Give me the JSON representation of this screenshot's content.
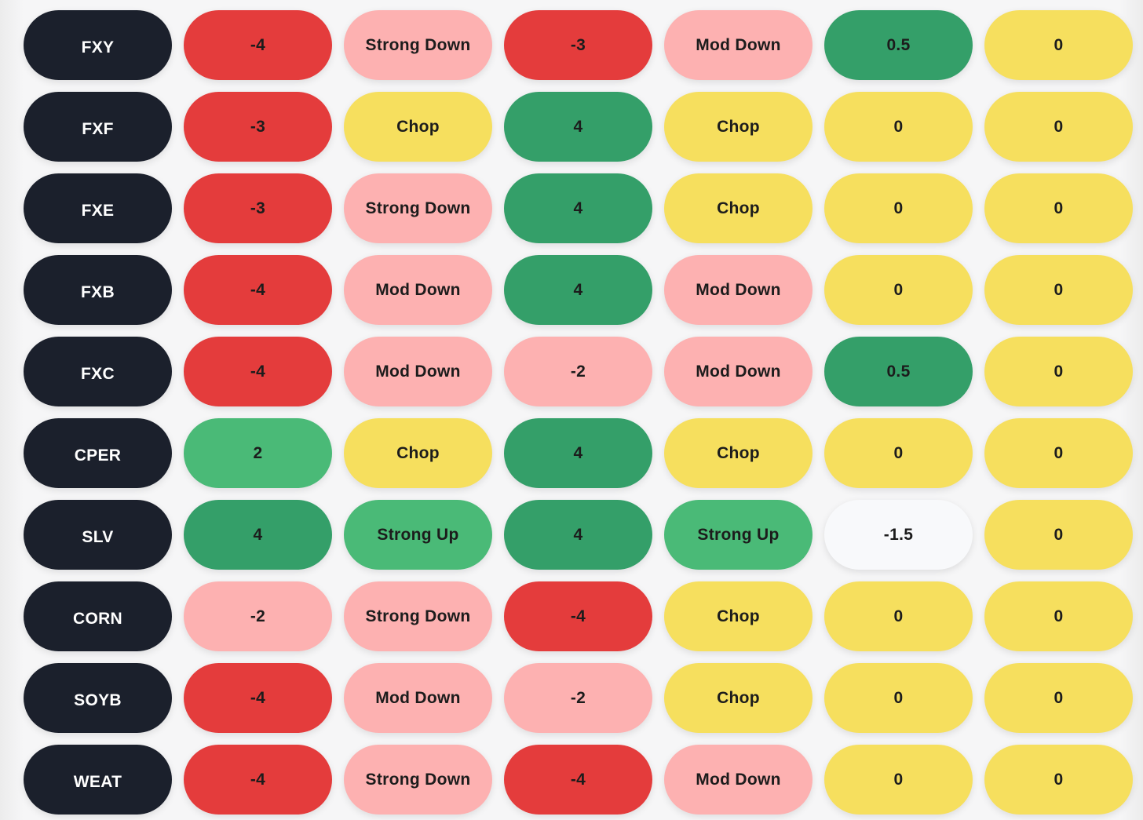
{
  "colors": {
    "ticker": "#1b202c",
    "strong_down": "#e43c3c",
    "mod_down": "#fdb1b1",
    "chop": "#f6df5e",
    "mod_up": "#4aba77",
    "strong_up_dark": "#349f69",
    "neutral": "#f8f9fb"
  },
  "rows": [
    {
      "ticker": "FXY",
      "cells": [
        {
          "text": "-4",
          "tone": "strong_down"
        },
        {
          "text": "Strong Down",
          "tone": "mod_down"
        },
        {
          "text": "-3",
          "tone": "strong_down"
        },
        {
          "text": "Mod Down",
          "tone": "mod_down"
        },
        {
          "text": "0.5",
          "tone": "strong_up_dark"
        },
        {
          "text": "0",
          "tone": "chop"
        }
      ]
    },
    {
      "ticker": "FXF",
      "cells": [
        {
          "text": "-3",
          "tone": "strong_down"
        },
        {
          "text": "Chop",
          "tone": "chop"
        },
        {
          "text": "4",
          "tone": "strong_up_dark"
        },
        {
          "text": "Chop",
          "tone": "chop"
        },
        {
          "text": "0",
          "tone": "chop"
        },
        {
          "text": "0",
          "tone": "chop"
        }
      ]
    },
    {
      "ticker": "FXE",
      "cells": [
        {
          "text": "-3",
          "tone": "strong_down"
        },
        {
          "text": "Strong Down",
          "tone": "mod_down"
        },
        {
          "text": "4",
          "tone": "strong_up_dark"
        },
        {
          "text": "Chop",
          "tone": "chop"
        },
        {
          "text": "0",
          "tone": "chop"
        },
        {
          "text": "0",
          "tone": "chop"
        }
      ]
    },
    {
      "ticker": "FXB",
      "cells": [
        {
          "text": "-4",
          "tone": "strong_down"
        },
        {
          "text": "Mod Down",
          "tone": "mod_down"
        },
        {
          "text": "4",
          "tone": "strong_up_dark"
        },
        {
          "text": "Mod Down",
          "tone": "mod_down"
        },
        {
          "text": "0",
          "tone": "chop"
        },
        {
          "text": "0",
          "tone": "chop"
        }
      ]
    },
    {
      "ticker": "FXC",
      "cells": [
        {
          "text": "-4",
          "tone": "strong_down"
        },
        {
          "text": "Mod Down",
          "tone": "mod_down"
        },
        {
          "text": "-2",
          "tone": "mod_down"
        },
        {
          "text": "Mod Down",
          "tone": "mod_down"
        },
        {
          "text": "0.5",
          "tone": "strong_up_dark"
        },
        {
          "text": "0",
          "tone": "chop"
        }
      ]
    },
    {
      "ticker": "CPER",
      "cells": [
        {
          "text": "2",
          "tone": "mod_up"
        },
        {
          "text": "Chop",
          "tone": "chop"
        },
        {
          "text": "4",
          "tone": "strong_up_dark"
        },
        {
          "text": "Chop",
          "tone": "chop"
        },
        {
          "text": "0",
          "tone": "chop"
        },
        {
          "text": "0",
          "tone": "chop"
        }
      ]
    },
    {
      "ticker": "SLV",
      "cells": [
        {
          "text": "4",
          "tone": "strong_up_dark"
        },
        {
          "text": "Strong Up",
          "tone": "mod_up"
        },
        {
          "text": "4",
          "tone": "strong_up_dark"
        },
        {
          "text": "Strong Up",
          "tone": "mod_up"
        },
        {
          "text": "-1.5",
          "tone": "neutral"
        },
        {
          "text": "0",
          "tone": "chop"
        }
      ]
    },
    {
      "ticker": "CORN",
      "cells": [
        {
          "text": "-2",
          "tone": "mod_down"
        },
        {
          "text": "Strong Down",
          "tone": "mod_down"
        },
        {
          "text": "-4",
          "tone": "strong_down"
        },
        {
          "text": "Chop",
          "tone": "chop"
        },
        {
          "text": "0",
          "tone": "chop"
        },
        {
          "text": "0",
          "tone": "chop"
        }
      ]
    },
    {
      "ticker": "SOYB",
      "cells": [
        {
          "text": "-4",
          "tone": "strong_down"
        },
        {
          "text": "Mod Down",
          "tone": "mod_down"
        },
        {
          "text": "-2",
          "tone": "mod_down"
        },
        {
          "text": "Chop",
          "tone": "chop"
        },
        {
          "text": "0",
          "tone": "chop"
        },
        {
          "text": "0",
          "tone": "chop"
        }
      ]
    },
    {
      "ticker": "WEAT",
      "cells": [
        {
          "text": "-4",
          "tone": "strong_down"
        },
        {
          "text": "Strong Down",
          "tone": "mod_down"
        },
        {
          "text": "-4",
          "tone": "strong_down"
        },
        {
          "text": "Mod Down",
          "tone": "mod_down"
        },
        {
          "text": "0",
          "tone": "chop"
        },
        {
          "text": "0",
          "tone": "chop"
        }
      ]
    }
  ]
}
